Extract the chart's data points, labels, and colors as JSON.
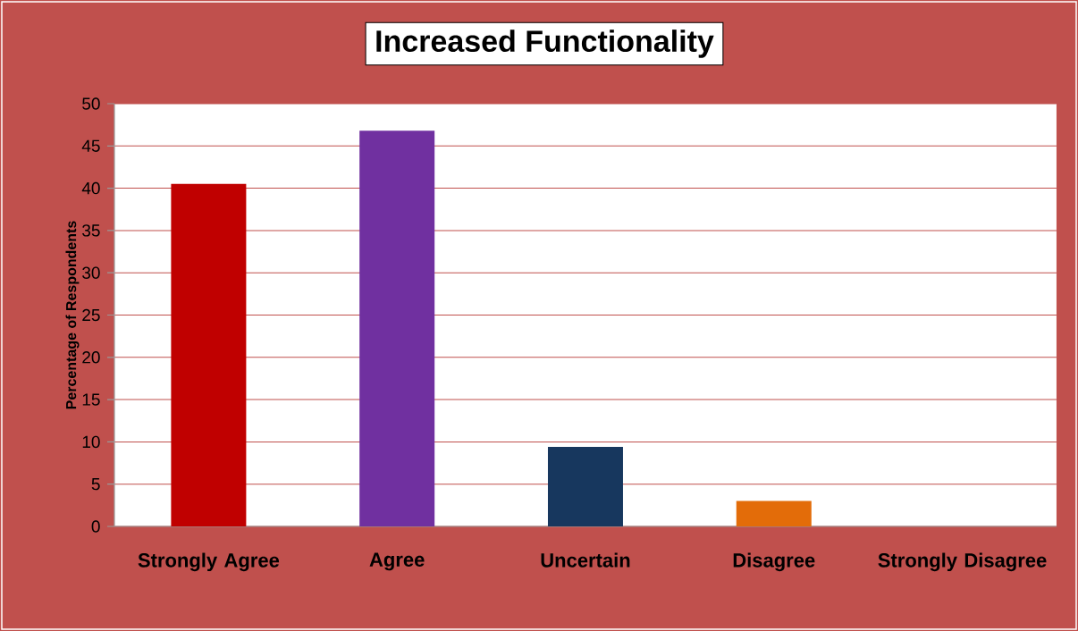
{
  "chart_data": {
    "type": "bar",
    "title": "Increased Functionality",
    "ylabel": "Percentage of Respondents",
    "categories": [
      "Strongly Agree",
      "Agree",
      "Uncertain",
      "Disagree",
      "Strongly Disagree"
    ],
    "values": [
      40.5,
      46.8,
      9.4,
      3.0,
      0
    ],
    "colors": [
      "#c00000",
      "#7030a0",
      "#17375e",
      "#e36c09",
      null
    ],
    "ylim": [
      0,
      50
    ],
    "yticks": [
      0,
      5,
      10,
      15,
      20,
      25,
      30,
      35,
      40,
      45,
      50
    ],
    "grid": "y"
  }
}
